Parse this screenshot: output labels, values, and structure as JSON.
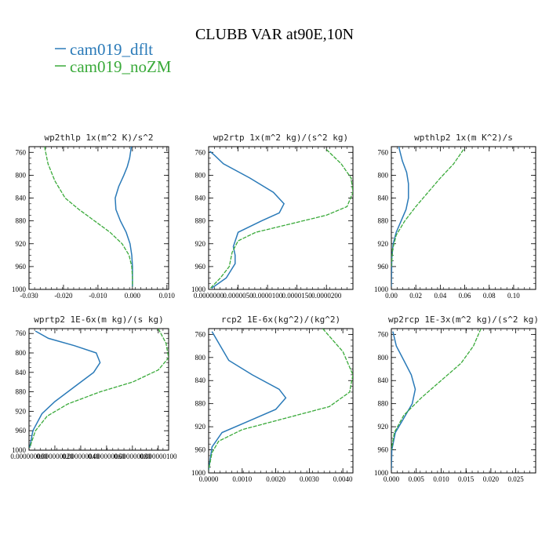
{
  "figure_title": "CLUBB VAR at90E,10N",
  "legend": [
    {
      "label": "cam019_dflt",
      "color": "#2a7ab8"
    },
    {
      "label": "cam019_noZM",
      "color": "#3aaa3a"
    }
  ],
  "chart_data": [
    {
      "type": "line",
      "title": "wp2thlp   1x(m^2 K)/s^2",
      "xlim": [
        -0.03,
        0.0105
      ],
      "ylim": [
        1000,
        750
      ],
      "xticks": [
        -0.03,
        -0.02,
        -0.01,
        0.0,
        0.01
      ],
      "xtick_labels": [
        "-0.030",
        "-0.020",
        "-0.010",
        "0.000",
        "0.010"
      ],
      "yticks": [
        760,
        800,
        840,
        880,
        920,
        960,
        1000
      ],
      "series": [
        {
          "name": "cam019_dflt",
          "color": "#2a7ab8",
          "x": [
            -0.0003,
            -0.0008,
            -0.0015,
            -0.0025,
            -0.004,
            -0.005,
            -0.0048,
            -0.0035,
            -0.0018,
            -0.0007,
            -0.0002,
            0.0,
            0.0
          ],
          "y": [
            750,
            770,
            785,
            800,
            820,
            840,
            860,
            880,
            900,
            920,
            940,
            960,
            995
          ]
        },
        {
          "name": "cam019_noZM",
          "color": "#3aaa3a",
          "x": [
            -0.0255,
            -0.0245,
            -0.0225,
            -0.0195,
            -0.0155,
            -0.011,
            -0.0065,
            -0.003,
            -0.001,
            -0.0002,
            0.0,
            0.0
          ],
          "y": [
            750,
            780,
            810,
            840,
            860,
            880,
            900,
            920,
            940,
            960,
            980,
            995
          ]
        }
      ]
    },
    {
      "type": "line",
      "title": "wp2rtp   1x(m^2 kg)/(s^2 kg)",
      "xlim": [
        0,
        2.45e-05
      ],
      "ylim": [
        1000,
        750
      ],
      "xticks": [
        0,
        5e-06,
        1e-05,
        1.5e-05,
        2e-05
      ],
      "xtick_labels": [
        "0.0000000",
        "0.0000050",
        "0.0000100",
        "0.0000150",
        "0.0000200"
      ],
      "yticks": [
        760,
        800,
        840,
        880,
        920,
        960,
        1000
      ],
      "series": [
        {
          "name": "cam019_dflt",
          "color": "#2a7ab8",
          "x": [
            2e-07,
            1e-06,
            2.5e-06,
            7e-06,
            1.1e-05,
            1.28e-05,
            1.2e-05,
            9e-06,
            5e-06,
            4.2e-06,
            4.5e-06,
            4.5e-06,
            3e-06,
            5e-07
          ],
          "y": [
            758,
            765,
            780,
            805,
            830,
            850,
            866,
            880,
            900,
            925,
            940,
            955,
            980,
            998
          ]
        },
        {
          "name": "cam019_noZM",
          "color": "#3aaa3a",
          "x": [
            2e-05,
            2.25e-05,
            2.42e-05,
            2.45e-05,
            2.35e-05,
            2e-05,
            1.4e-05,
            8e-06,
            5e-06,
            4e-06,
            3.5e-06,
            2e-06,
            3e-07
          ],
          "y": [
            755,
            780,
            805,
            830,
            855,
            870,
            885,
            900,
            915,
            935,
            960,
            980,
            998
          ]
        }
      ]
    },
    {
      "type": "line",
      "title": "wpthlp2   1x(m K^2)/s",
      "xlim": [
        0,
        0.118
      ],
      "ylim": [
        1000,
        750
      ],
      "xticks": [
        0,
        0.02,
        0.04,
        0.06,
        0.08,
        0.1
      ],
      "xtick_labels": [
        "0.00",
        "0.02",
        "0.04",
        "0.06",
        "0.08",
        "0.10"
      ],
      "yticks": [
        760,
        800,
        840,
        880,
        920,
        960,
        1000
      ],
      "series": [
        {
          "name": "cam019_dflt",
          "color": "#2a7ab8",
          "x": [
            0.006,
            0.009,
            0.0125,
            0.014,
            0.014,
            0.012,
            0.008,
            0.004,
            0.0015,
            0.0004,
            0.0
          ],
          "y": [
            750,
            775,
            795,
            815,
            840,
            860,
            880,
            900,
            920,
            945,
            995
          ]
        },
        {
          "name": "cam019_noZM",
          "color": "#3aaa3a",
          "x": [
            0.059,
            0.051,
            0.04,
            0.03,
            0.02,
            0.011,
            0.004,
            0.001,
            0.0
          ],
          "y": [
            755,
            780,
            805,
            830,
            855,
            880,
            905,
            930,
            960
          ]
        }
      ]
    },
    {
      "type": "line",
      "title": "wprtp2   1E-6x(m kg)/(s kg)",
      "xlim": [
        0,
        1.08e-07
      ],
      "ylim": [
        1000,
        750
      ],
      "xticks": [
        0,
        2e-08,
        4e-08,
        6e-08,
        8e-08,
        1e-07
      ],
      "xtick_labels": [
        "0.000000000",
        "0.000000020",
        "0.000000040",
        "0.000000060",
        "0.000000080",
        "0.000000100"
      ],
      "yticks": [
        760,
        800,
        840,
        880,
        920,
        960,
        1000
      ],
      "series": [
        {
          "name": "cam019_dflt",
          "color": "#2a7ab8",
          "x": [
            5e-09,
            1.5e-08,
            3.5e-08,
            5.2e-08,
            5.5e-08,
            5e-08,
            3.5e-08,
            2e-08,
            1e-08,
            3e-09,
            5e-10
          ],
          "y": [
            755,
            770,
            785,
            800,
            820,
            840,
            870,
            900,
            925,
            960,
            995
          ]
        },
        {
          "name": "cam019_noZM",
          "color": "#3aaa3a",
          "x": [
            1e-07,
            1.06e-07,
            1.08e-07,
            1e-07,
            8e-08,
            5.5e-08,
            3e-08,
            1.4e-08,
            5e-09,
            5e-10
          ],
          "y": [
            750,
            780,
            810,
            835,
            860,
            880,
            905,
            930,
            960,
            995
          ]
        }
      ]
    },
    {
      "type": "line",
      "title": "rcp2   1E-6x(kg^2)/(kg^2)",
      "xlim": [
        0,
        0.0043
      ],
      "ylim": [
        1000,
        750
      ],
      "xticks": [
        0,
        0.001,
        0.002,
        0.003,
        0.004
      ],
      "xtick_labels": [
        "0.0000",
        "0.0010",
        "0.0020",
        "0.0030",
        "0.0040"
      ],
      "yticks": [
        760,
        800,
        840,
        880,
        920,
        960,
        1000
      ],
      "series": [
        {
          "name": "cam019_dflt",
          "color": "#2a7ab8",
          "x": [
            0.0001,
            0.0003,
            0.0006,
            0.0013,
            0.0021,
            0.0023,
            0.002,
            0.0012,
            0.0004,
            0.0001,
            0.0
          ],
          "y": [
            755,
            775,
            805,
            830,
            855,
            870,
            890,
            910,
            930,
            955,
            995
          ]
        },
        {
          "name": "cam019_noZM",
          "color": "#3aaa3a",
          "x": [
            0.0034,
            0.004,
            0.0043,
            0.0042,
            0.0036,
            0.0023,
            0.001,
            0.0003,
            0.0001,
            0.0
          ],
          "y": [
            750,
            790,
            830,
            860,
            885,
            905,
            925,
            945,
            965,
            995
          ]
        }
      ]
    },
    {
      "type": "line",
      "title": "wp2rcp   1E-3x(m^2 kg)/(s^2 kg)",
      "xlim": [
        0,
        0.029
      ],
      "ylim": [
        1000,
        750
      ],
      "xticks": [
        0,
        0.005,
        0.01,
        0.015,
        0.02,
        0.025
      ],
      "xtick_labels": [
        "0.000",
        "0.005",
        "0.010",
        "0.015",
        "0.020",
        "0.025"
      ],
      "yticks": [
        760,
        800,
        840,
        880,
        920,
        960,
        1000
      ],
      "series": [
        {
          "name": "cam019_dflt",
          "color": "#2a7ab8",
          "x": [
            0.0003,
            0.001,
            0.0025,
            0.004,
            0.0048,
            0.0042,
            0.0025,
            0.0008,
            0.0001,
            0.0
          ],
          "y": [
            755,
            780,
            805,
            830,
            855,
            880,
            905,
            930,
            960,
            995
          ]
        },
        {
          "name": "cam019_noZM",
          "color": "#3aaa3a",
          "x": [
            0.018,
            0.0165,
            0.014,
            0.01,
            0.006,
            0.0025,
            0.0006,
            0.0
          ],
          "y": [
            750,
            780,
            810,
            840,
            870,
            900,
            930,
            960
          ]
        }
      ]
    }
  ]
}
